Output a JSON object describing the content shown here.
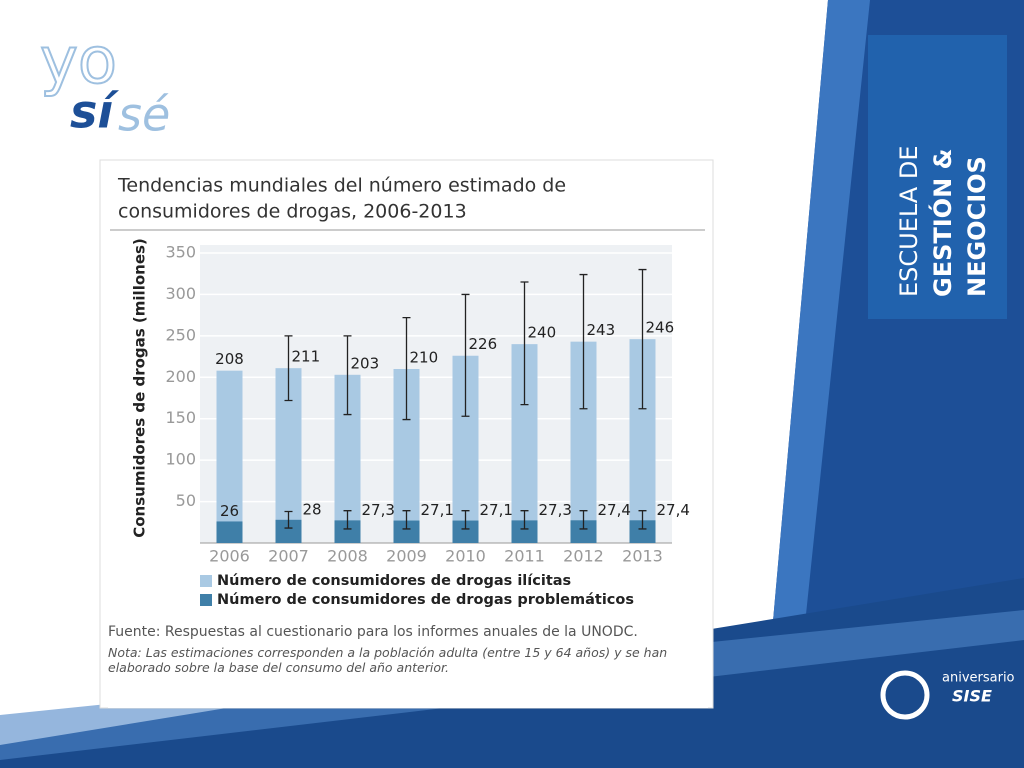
{
  "logo": {
    "top": "yo",
    "accent": "sí",
    "rest": "sé"
  },
  "side_panel": {
    "lines": [
      "ESCUELA DE",
      "GESTIÓN &",
      "NEGOCIOS"
    ]
  },
  "footer_logo": {
    "small": "aniversario",
    "brand": "SISE"
  },
  "chart_data": {
    "type": "bar",
    "title_lines": [
      "Tendencias mundiales del número estimado de",
      "consumidores de drogas, 2006-2013"
    ],
    "y_label": "Consumidores de drogas (millones)",
    "categories": [
      "2006",
      "2007",
      "2008",
      "2009",
      "2010",
      "2011",
      "2012",
      "2013"
    ],
    "series": [
      {
        "name": "Número de consumidores de drogas ilícitas",
        "color": "#a9c9e3",
        "values": [
          208,
          211,
          203,
          210,
          226,
          240,
          243,
          246
        ],
        "error_low": [
          null,
          172,
          155,
          149,
          153,
          167,
          162,
          162
        ],
        "error_high": [
          null,
          250,
          250,
          272,
          300,
          315,
          324,
          330
        ]
      },
      {
        "name": "Número de consumidores de drogas problemáticos",
        "color": "#3f7fa8",
        "values": [
          26,
          28,
          27.3,
          27.1,
          27.1,
          27.3,
          27.4,
          27.4
        ],
        "value_labels": [
          "26",
          "28",
          "27,3",
          "27,1",
          "27,1",
          "27,3",
          "27,4",
          "27,4"
        ],
        "error_low": [
          null,
          18,
          17,
          17,
          17,
          17,
          17,
          17
        ],
        "error_high": [
          null,
          38,
          39,
          39,
          39,
          39,
          39,
          39
        ]
      }
    ],
    "ylim": [
      0,
      350
    ],
    "yticks": [
      50,
      100,
      150,
      200,
      250,
      300,
      350
    ],
    "grid": true,
    "source": "Fuente: Respuestas al cuestionario para los informes anuales de la UNODC.",
    "note": "Nota: Las estimaciones corresponden a la población adulta (entre 15 y 64 años) y se han elaborado sobre la base del consumo del año anterior."
  }
}
